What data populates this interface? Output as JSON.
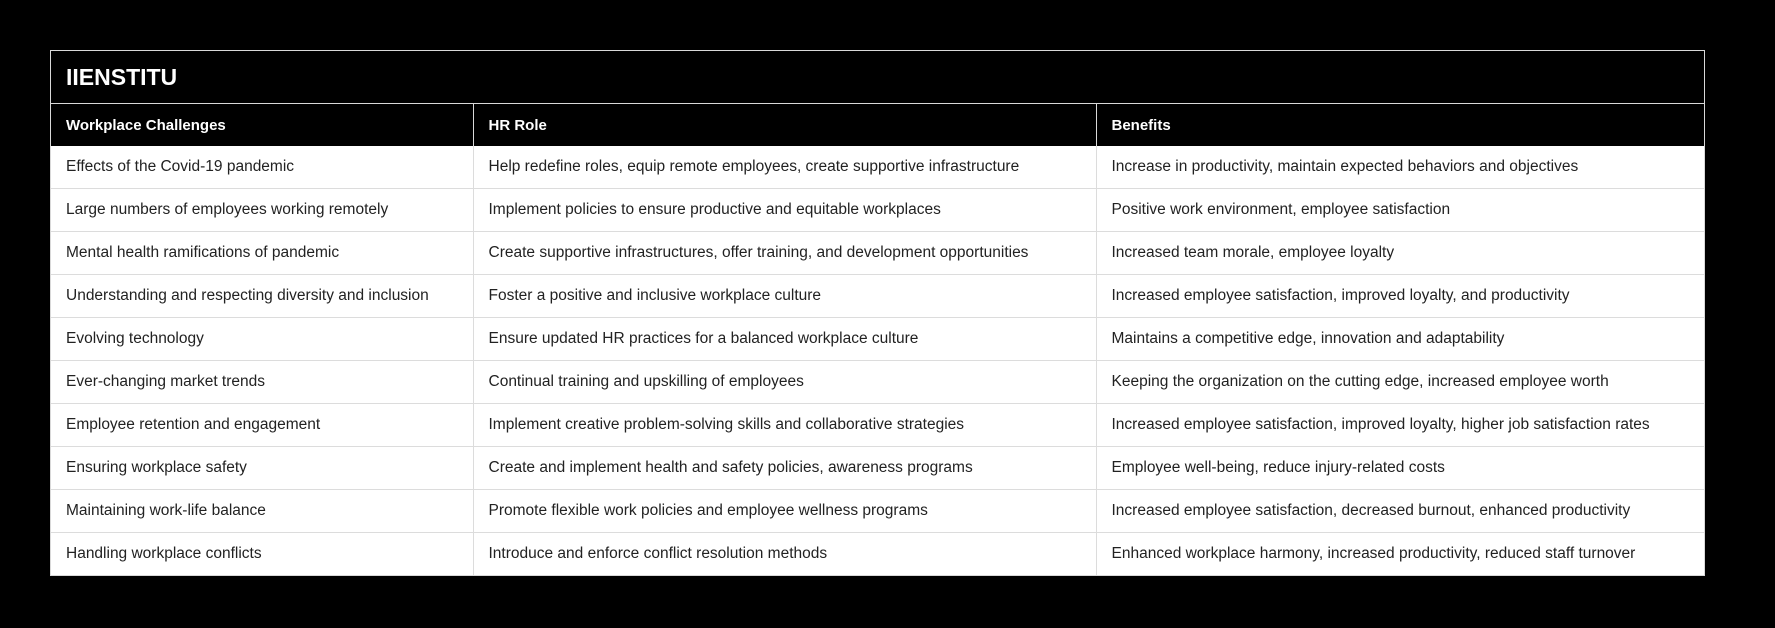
{
  "table": {
    "title": "IIENSTITU",
    "columns": [
      "Workplace Challenges",
      "HR Role",
      "Benefits"
    ],
    "rows": [
      [
        "Effects of the Covid-19 pandemic",
        "Help redefine roles, equip remote employees, create supportive infrastructure",
        "Increase in productivity, maintain expected behaviors and objectives"
      ],
      [
        "Large numbers of employees working remotely",
        "Implement policies to ensure productive and equitable workplaces",
        "Positive work environment, employee satisfaction"
      ],
      [
        "Mental health ramifications of pandemic",
        "Create supportive infrastructures, offer training, and development opportunities",
        "Increased team morale, employee loyalty"
      ],
      [
        "Understanding and respecting diversity and inclusion",
        "Foster a positive and inclusive workplace culture",
        "Increased employee satisfaction, improved loyalty, and productivity"
      ],
      [
        "Evolving technology",
        "Ensure updated HR practices for a balanced workplace culture",
        "Maintains a competitive edge, innovation and adaptability"
      ],
      [
        "Ever-changing market trends",
        "Continual training and upskilling of employees",
        "Keeping the organization on the cutting edge, increased employee worth"
      ],
      [
        "Employee retention and engagement",
        "Implement creative problem-solving skills and collaborative strategies",
        "Increased employee satisfaction, improved loyalty, higher job satisfaction rates"
      ],
      [
        "Ensuring workplace safety",
        "Create and implement health and safety policies, awareness programs",
        "Employee well-being, reduce injury-related costs"
      ],
      [
        "Maintaining work-life balance",
        "Promote flexible work policies and employee wellness programs",
        "Increased employee satisfaction, decreased burnout, enhanced productivity"
      ],
      [
        "Handling workplace conflicts",
        "Introduce and enforce conflict resolution methods",
        "Enhanced workplace harmony, increased productivity, reduced staff turnover"
      ]
    ]
  },
  "colors": {
    "background": "#000000",
    "header_bg": "#000000",
    "header_text": "#ffffff",
    "cell_bg": "#ffffff",
    "cell_text": "#222222",
    "border": "#dcdcdc"
  }
}
